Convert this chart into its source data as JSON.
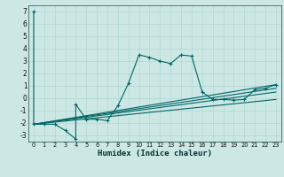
{
  "xlabel": "Humidex (Indice chaleur)",
  "background_color": "#cde8e4",
  "grid_color": "#b0d8d4",
  "line_color": "#006666",
  "xlim": [
    -0.5,
    23.5
  ],
  "ylim": [
    -3.5,
    7.5
  ],
  "xticks": [
    0,
    1,
    2,
    3,
    4,
    5,
    6,
    7,
    8,
    9,
    10,
    11,
    12,
    13,
    14,
    15,
    16,
    17,
    18,
    19,
    20,
    21,
    22,
    23
  ],
  "yticks": [
    -3,
    -2,
    -1,
    0,
    1,
    2,
    3,
    4,
    5,
    6,
    7
  ],
  "main_series": [
    [
      0,
      7.0
    ],
    [
      0,
      -2.1
    ],
    [
      1,
      -2.1
    ],
    [
      2,
      -2.1
    ],
    [
      3,
      -2.6
    ],
    [
      4,
      -3.3
    ],
    [
      4,
      -0.5
    ],
    [
      5,
      -1.7
    ],
    [
      6,
      -1.7
    ],
    [
      7,
      -1.8
    ],
    [
      8,
      -0.6
    ],
    [
      9,
      1.2
    ],
    [
      10,
      3.5
    ],
    [
      11,
      3.3
    ],
    [
      12,
      3.0
    ],
    [
      13,
      2.8
    ],
    [
      14,
      3.5
    ],
    [
      15,
      3.4
    ],
    [
      16,
      0.5
    ],
    [
      17,
      -0.1
    ],
    [
      18,
      -0.1
    ],
    [
      19,
      -0.15
    ],
    [
      20,
      -0.1
    ],
    [
      21,
      0.7
    ],
    [
      22,
      0.8
    ],
    [
      23,
      1.1
    ]
  ],
  "trend_lines": [
    [
      [
        0,
        -2.1
      ],
      [
        23,
        1.1
      ]
    ],
    [
      [
        0,
        -2.1
      ],
      [
        23,
        0.8
      ]
    ],
    [
      [
        0,
        -2.1
      ],
      [
        23,
        0.5
      ]
    ],
    [
      [
        0,
        -2.1
      ],
      [
        23,
        -0.1
      ]
    ]
  ]
}
